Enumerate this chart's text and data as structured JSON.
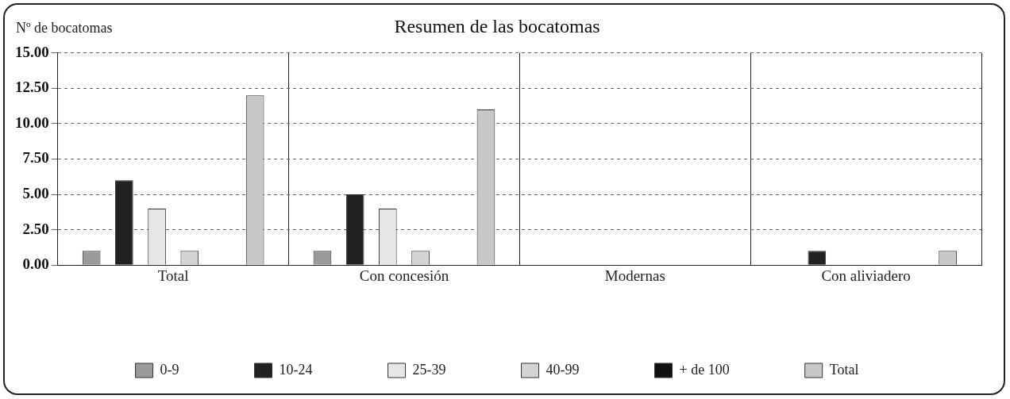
{
  "chart_data": {
    "type": "bar",
    "title": "Resumen de las bocatomas",
    "ylabel": "Nº de bocatomas",
    "categories": [
      "Total",
      "Con concesión",
      "Modernas",
      "Con aliviadero"
    ],
    "series": [
      {
        "name": "0-9",
        "color": "#9a9a9a",
        "values": [
          1,
          1,
          0,
          0
        ]
      },
      {
        "name": "10-24",
        "color": "#222222",
        "values": [
          6,
          5,
          0,
          1
        ]
      },
      {
        "name": "25-39",
        "color": "#e6e6e6",
        "values": [
          4,
          4,
          0,
          0
        ]
      },
      {
        "name": "40-99",
        "color": "#d4d4d4",
        "values": [
          1,
          1,
          0,
          0
        ]
      },
      {
        "name": "+ de 100",
        "color": "#111111",
        "values": [
          0,
          0,
          0,
          0
        ]
      },
      {
        "name": "Total",
        "color": "#c8c8c8",
        "values": [
          12,
          11,
          0,
          1
        ]
      }
    ],
    "ylim": [
      0,
      15
    ],
    "yticks": [
      {
        "value": 0,
        "label": "0.00"
      },
      {
        "value": 2.5,
        "label": "2.50"
      },
      {
        "value": 5,
        "label": "5.00"
      },
      {
        "value": 7.5,
        "label": "7.50"
      },
      {
        "value": 10,
        "label": "10.00"
      },
      {
        "value": 12.5,
        "label": "12.50"
      },
      {
        "value": 15,
        "label": "15.00"
      }
    ],
    "grid": true,
    "legend": "bottom"
  }
}
